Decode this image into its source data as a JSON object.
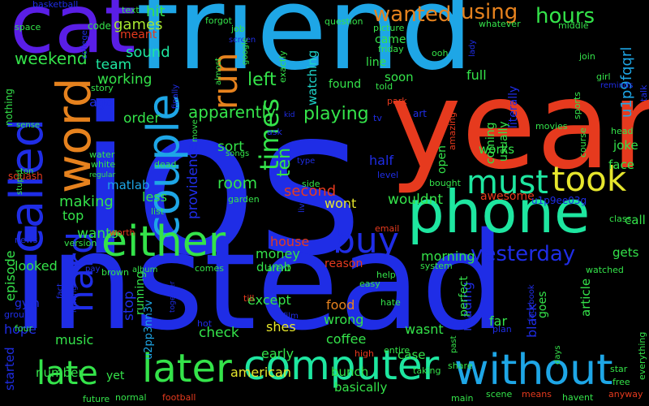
{
  "palette": {
    "background": "#000000",
    "blue": "#1f2de6",
    "sky": "#1ea6e6",
    "red": "#e63a1e",
    "green": "#34e34a",
    "teal": "#1ee6a0",
    "orange": "#e6821e",
    "lime": "#a6e630",
    "yellow": "#e6e62d",
    "violet": "#5a1ee6",
    "aqua": "#1ed2c8"
  },
  "words": [
    {
      "text": "ios",
      "color": "blue"
    },
    {
      "text": "instead",
      "color": "blue"
    },
    {
      "text": "friend",
      "color": "sky"
    },
    {
      "text": "year",
      "color": "red"
    },
    {
      "text": "cat",
      "color": "violet"
    },
    {
      "text": "phone",
      "color": "teal"
    },
    {
      "text": "called",
      "color": "blue"
    },
    {
      "text": "word",
      "color": "orange"
    },
    {
      "text": "couple",
      "color": "sky"
    },
    {
      "text": "either",
      "color": "green"
    },
    {
      "text": "computer",
      "color": "teal"
    },
    {
      "text": "without",
      "color": "sky"
    },
    {
      "text": "later",
      "color": "green"
    },
    {
      "text": "took",
      "color": "yellow"
    },
    {
      "text": "must",
      "color": "teal"
    },
    {
      "text": "buy",
      "color": "blue"
    },
    {
      "text": "hard",
      "color": "blue"
    },
    {
      "text": "late",
      "color": "green"
    },
    {
      "text": "run",
      "color": "orange"
    },
    {
      "text": "times",
      "color": "green"
    },
    {
      "text": "ten",
      "color": "green"
    },
    {
      "text": "wanted",
      "color": "orange"
    },
    {
      "text": "yesterday",
      "color": "blue"
    },
    {
      "text": "hours",
      "color": "green"
    },
    {
      "text": "using",
      "color": "orange"
    },
    {
      "text": "u1p9fqqrl",
      "color": "sky"
    },
    {
      "text": "apparently",
      "color": "green"
    },
    {
      "text": "left",
      "color": "green"
    },
    {
      "text": "playing",
      "color": "green"
    },
    {
      "text": "watching",
      "color": "aqua"
    },
    {
      "text": "weekend",
      "color": "green"
    },
    {
      "text": "hit",
      "color": "green"
    },
    {
      "text": "games",
      "color": "lime"
    },
    {
      "text": "sound",
      "color": "teal"
    },
    {
      "text": "meant",
      "color": "red"
    },
    {
      "text": "team",
      "color": "teal"
    },
    {
      "text": "working",
      "color": "green"
    },
    {
      "text": "ago",
      "color": "blue"
    },
    {
      "text": "order",
      "color": "green"
    },
    {
      "text": "sort",
      "color": "green"
    },
    {
      "text": "room",
      "color": "green"
    },
    {
      "text": "second",
      "color": "red"
    },
    {
      "text": "matlab",
      "color": "sky"
    },
    {
      "text": "making",
      "color": "green"
    },
    {
      "text": "less",
      "color": "green"
    },
    {
      "text": "top",
      "color": "green"
    },
    {
      "text": "wants",
      "color": "green"
    },
    {
      "text": "providence",
      "color": "blue"
    },
    {
      "text": "half",
      "color": "blue"
    },
    {
      "text": "wont",
      "color": "yellow"
    },
    {
      "text": "wouldnt",
      "color": "green"
    },
    {
      "text": "awesome",
      "color": "red"
    },
    {
      "text": "house",
      "color": "red"
    },
    {
      "text": "money",
      "color": "green"
    },
    {
      "text": "dumb",
      "color": "green"
    },
    {
      "text": "morning",
      "color": "green"
    },
    {
      "text": "episode",
      "color": "green"
    },
    {
      "text": "looked",
      "color": "green"
    },
    {
      "text": "reason",
      "color": "red"
    },
    {
      "text": "except",
      "color": "green"
    },
    {
      "text": "shes",
      "color": "yellow"
    },
    {
      "text": "food",
      "color": "orange"
    },
    {
      "text": "wrong",
      "color": "green"
    },
    {
      "text": "coffee",
      "color": "green"
    },
    {
      "text": "check",
      "color": "green"
    },
    {
      "text": "stop",
      "color": "blue"
    },
    {
      "text": "running",
      "color": "green"
    },
    {
      "text": "u2pp3nn3v",
      "color": "sky"
    },
    {
      "text": "early",
      "color": "green"
    },
    {
      "text": "american",
      "color": "yellow"
    },
    {
      "text": "bunch",
      "color": "green"
    },
    {
      "text": "basically",
      "color": "green"
    },
    {
      "text": "case",
      "color": "green"
    },
    {
      "text": "wasnt",
      "color": "green"
    },
    {
      "text": "reading",
      "color": "blue"
    },
    {
      "text": "far",
      "color": "green"
    },
    {
      "text": "black",
      "color": "blue"
    },
    {
      "text": "goes",
      "color": "green"
    },
    {
      "text": "article",
      "color": "green"
    },
    {
      "text": "gets",
      "color": "green"
    },
    {
      "text": "call",
      "color": "green"
    },
    {
      "text": "face",
      "color": "green"
    },
    {
      "text": "joke",
      "color": "green"
    },
    {
      "text": "works",
      "color": "green"
    },
    {
      "text": "coming",
      "color": "green"
    },
    {
      "text": "usually",
      "color": "green"
    },
    {
      "text": "literally",
      "color": "blue"
    },
    {
      "text": "full",
      "color": "green"
    },
    {
      "text": "soon",
      "color": "green"
    },
    {
      "text": "line",
      "color": "green"
    },
    {
      "text": "came",
      "color": "green"
    },
    {
      "text": "found",
      "color": "green"
    },
    {
      "text": "music",
      "color": "green"
    },
    {
      "text": "hope",
      "color": "blue"
    },
    {
      "text": "number",
      "color": "green"
    },
    {
      "text": "started",
      "color": "blue"
    },
    {
      "text": "gym",
      "color": "blue"
    },
    {
      "text": "yet",
      "color": "green"
    },
    {
      "text": "perfect",
      "color": "green"
    },
    {
      "text": "open",
      "color": "green"
    },
    {
      "text": "u1p9ee03g",
      "color": "blue"
    },
    {
      "text": "squash",
      "color": "red"
    },
    {
      "text": "white",
      "color": "green"
    },
    {
      "text": "water",
      "color": "green"
    },
    {
      "text": "nothing",
      "color": "green"
    },
    {
      "text": "finally",
      "color": "blue"
    },
    {
      "text": "story",
      "color": "green"
    },
    {
      "text": "college",
      "color": "blue"
    },
    {
      "text": "space",
      "color": "green"
    },
    {
      "text": "basketball",
      "color": "blue"
    },
    {
      "text": "text",
      "color": "green"
    },
    {
      "text": "code",
      "color": "green"
    },
    {
      "text": "forgot",
      "color": "green"
    },
    {
      "text": "question",
      "color": "green"
    },
    {
      "text": "picture",
      "color": "green"
    },
    {
      "text": "whatever",
      "color": "green"
    },
    {
      "text": "middle",
      "color": "green"
    },
    {
      "text": "join",
      "color": "green"
    },
    {
      "text": "friday",
      "color": "green"
    },
    {
      "text": "ooh",
      "color": "green"
    },
    {
      "text": "told",
      "color": "green"
    },
    {
      "text": "park",
      "color": "red"
    },
    {
      "text": "sports",
      "color": "green"
    },
    {
      "text": "art",
      "color": "blue"
    },
    {
      "text": "tv",
      "color": "blue"
    },
    {
      "text": "amazing",
      "color": "red"
    },
    {
      "text": "movies",
      "color": "green"
    },
    {
      "text": "head",
      "color": "green"
    },
    {
      "text": "course",
      "color": "green"
    },
    {
      "text": "talk",
      "color": "blue"
    },
    {
      "text": "reminds",
      "color": "blue"
    },
    {
      "text": "girl",
      "color": "green"
    },
    {
      "text": "lady",
      "color": "blue"
    },
    {
      "text": "job",
      "color": "green"
    },
    {
      "text": "screen",
      "color": "blue"
    },
    {
      "text": "google",
      "color": "green"
    },
    {
      "text": "almost",
      "color": "green"
    },
    {
      "text": "exactly",
      "color": "green"
    },
    {
      "text": "sense",
      "color": "green"
    },
    {
      "text": "stupid",
      "color": "green"
    },
    {
      "text": "ton",
      "color": "green"
    },
    {
      "text": "regular",
      "color": "green"
    },
    {
      "text": "dead",
      "color": "green"
    },
    {
      "text": "move",
      "color": "green"
    },
    {
      "text": "songs",
      "color": "green"
    },
    {
      "text": "type",
      "color": "blue"
    },
    {
      "text": "ask",
      "color": "blue"
    },
    {
      "text": "kid",
      "color": "blue"
    },
    {
      "text": "level",
      "color": "blue"
    },
    {
      "text": "side",
      "color": "green"
    },
    {
      "text": "live",
      "color": "blue"
    },
    {
      "text": "garden",
      "color": "green"
    },
    {
      "text": "list",
      "color": "green"
    },
    {
      "text": "bought",
      "color": "green"
    },
    {
      "text": "class",
      "color": "green"
    },
    {
      "text": "email",
      "color": "red"
    },
    {
      "text": "worth",
      "color": "red"
    },
    {
      "text": "version",
      "color": "green"
    },
    {
      "text": "news",
      "color": "blue"
    },
    {
      "text": "album",
      "color": "green"
    },
    {
      "text": "comes",
      "color": "green"
    },
    {
      "text": "brown",
      "color": "green"
    },
    {
      "text": "pay",
      "color": "blue"
    },
    {
      "text": "arent",
      "color": "green"
    },
    {
      "text": "help",
      "color": "green"
    },
    {
      "text": "easy",
      "color": "green"
    },
    {
      "text": "system",
      "color": "green"
    },
    {
      "text": "watched",
      "color": "green"
    },
    {
      "text": "fact",
      "color": "blue"
    },
    {
      "text": "leaving",
      "color": "blue"
    },
    {
      "text": "together",
      "color": "blue"
    },
    {
      "text": "till",
      "color": "red"
    },
    {
      "text": "eat",
      "color": "blue"
    },
    {
      "text": "hate",
      "color": "green"
    },
    {
      "text": "facebook",
      "color": "blue"
    },
    {
      "text": "group",
      "color": "blue"
    },
    {
      "text": "four",
      "color": "green"
    },
    {
      "text": "hot",
      "color": "blue"
    },
    {
      "text": "film",
      "color": "blue"
    },
    {
      "text": "plan",
      "color": "blue"
    },
    {
      "text": "entire",
      "color": "green"
    },
    {
      "text": "past",
      "color": "green"
    },
    {
      "text": "high",
      "color": "red"
    },
    {
      "text": "share",
      "color": "green"
    },
    {
      "text": "days",
      "color": "green"
    },
    {
      "text": "everything",
      "color": "green"
    },
    {
      "text": "star",
      "color": "green"
    },
    {
      "text": "free",
      "color": "green"
    },
    {
      "text": "taking",
      "color": "green"
    },
    {
      "text": "future",
      "color": "green"
    },
    {
      "text": "normal",
      "color": "green"
    },
    {
      "text": "football",
      "color": "red"
    },
    {
      "text": "main",
      "color": "green"
    },
    {
      "text": "scene",
      "color": "green"
    },
    {
      "text": "means",
      "color": "red"
    },
    {
      "text": "havent",
      "color": "green"
    },
    {
      "text": "anyway",
      "color": "red"
    }
  ]
}
